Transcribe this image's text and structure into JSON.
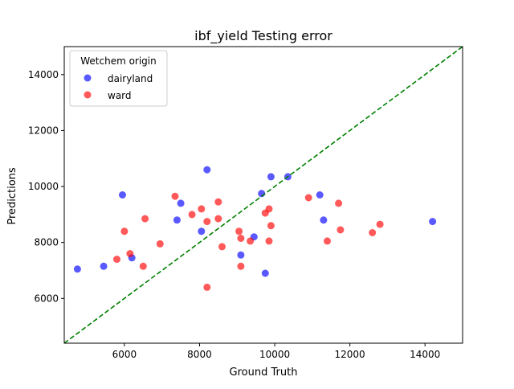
{
  "chart_data": {
    "type": "scatter",
    "title": "ibf_yield Testing error",
    "xlabel": "Ground Truth",
    "ylabel": "Predictions",
    "xlim": [
      4400,
      15000
    ],
    "ylim": [
      4400,
      15000
    ],
    "x_ticks": [
      6000,
      8000,
      10000,
      12000,
      14000
    ],
    "y_ticks": [
      6000,
      8000,
      10000,
      12000,
      14000
    ],
    "grid": false,
    "legend": {
      "title": "Wetchem origin",
      "placement": "top-left"
    },
    "reference_line": {
      "style": "dashed",
      "color": "#008000",
      "kind": "identity y=x"
    },
    "series": [
      {
        "name": "dairyland",
        "color": "#0000ff",
        "points": [
          [
            4750,
            7050
          ],
          [
            5450,
            7150
          ],
          [
            5950,
            9700
          ],
          [
            6200,
            7450
          ],
          [
            7400,
            8800
          ],
          [
            7500,
            9400
          ],
          [
            8050,
            8400
          ],
          [
            8200,
            10600
          ],
          [
            9100,
            7550
          ],
          [
            9450,
            8200
          ],
          [
            9650,
            9750
          ],
          [
            9750,
            6900
          ],
          [
            9900,
            10350
          ],
          [
            10350,
            10350
          ],
          [
            11200,
            9700
          ],
          [
            11300,
            8800
          ],
          [
            14200,
            8750
          ]
        ]
      },
      {
        "name": "ward",
        "color": "#ff0000",
        "points": [
          [
            5800,
            7400
          ],
          [
            6000,
            8400
          ],
          [
            6150,
            7600
          ],
          [
            6500,
            7150
          ],
          [
            6550,
            8850
          ],
          [
            6950,
            7950
          ],
          [
            7350,
            9650
          ],
          [
            7800,
            9000
          ],
          [
            8050,
            9200
          ],
          [
            8200,
            8750
          ],
          [
            8200,
            6400
          ],
          [
            8500,
            9450
          ],
          [
            8500,
            8850
          ],
          [
            8600,
            7850
          ],
          [
            9050,
            8400
          ],
          [
            9100,
            8150
          ],
          [
            9100,
            7150
          ],
          [
            9350,
            8050
          ],
          [
            9750,
            9050
          ],
          [
            9850,
            9200
          ],
          [
            9850,
            8050
          ],
          [
            9900,
            8600
          ],
          [
            10900,
            9600
          ],
          [
            11400,
            8050
          ],
          [
            11700,
            9400
          ],
          [
            11750,
            8450
          ],
          [
            12600,
            8350
          ],
          [
            12800,
            8650
          ]
        ]
      }
    ]
  }
}
